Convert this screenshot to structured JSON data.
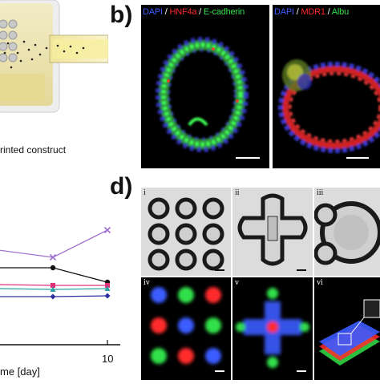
{
  "panel_b": {
    "letter": "b)",
    "left_labels": [
      {
        "text": "DAPI",
        "color": "#3b5bff"
      },
      {
        "text": " / ",
        "color": "#ffffff"
      },
      {
        "text": "HNF4a",
        "color": "#ff2a2a"
      },
      {
        "text": " / ",
        "color": "#ffffff"
      },
      {
        "text": "E-cadherin",
        "color": "#33e04a"
      }
    ],
    "right_labels": [
      {
        "text": "DAPI",
        "color": "#3b5bff"
      },
      {
        "text": " / ",
        "color": "#ffffff"
      },
      {
        "text": "MDR1",
        "color": "#ff2a2a"
      },
      {
        "text": " / ",
        "color": "#ffffff"
      },
      {
        "text": "Albu",
        "color": "#33e04a"
      }
    ]
  },
  "panel_a": {
    "caption": "rinted construct"
  },
  "panel_d": {
    "letter": "d)",
    "sub_labels": [
      "i",
      "ii",
      "iii",
      "iv",
      "v",
      "vi"
    ]
  },
  "chart_data": {
    "type": "line",
    "xlabel": "me [day]",
    "x_tick_labels": [
      "10"
    ],
    "x": [
      0,
      5,
      10
    ],
    "series": [
      {
        "marker": "x",
        "color": "#a070d0",
        "values": [
          312,
          321,
          287
        ]
      },
      {
        "marker": "circle",
        "color": "#111111",
        "values": [
          334,
          334,
          352
        ]
      },
      {
        "marker": "square",
        "color": "#e0307a",
        "values": [
          355,
          356,
          356
        ]
      },
      {
        "marker": "triangle",
        "color": "#2aa0a0",
        "values": [
          360,
          361,
          360
        ]
      },
      {
        "marker": "diamond",
        "color": "#3030a0",
        "values": [
          370,
          370,
          369
        ]
      }
    ]
  },
  "colors": {
    "dapi": "#3b5bff",
    "red_marker": "#ff2a2a",
    "green_marker": "#33e04a"
  }
}
